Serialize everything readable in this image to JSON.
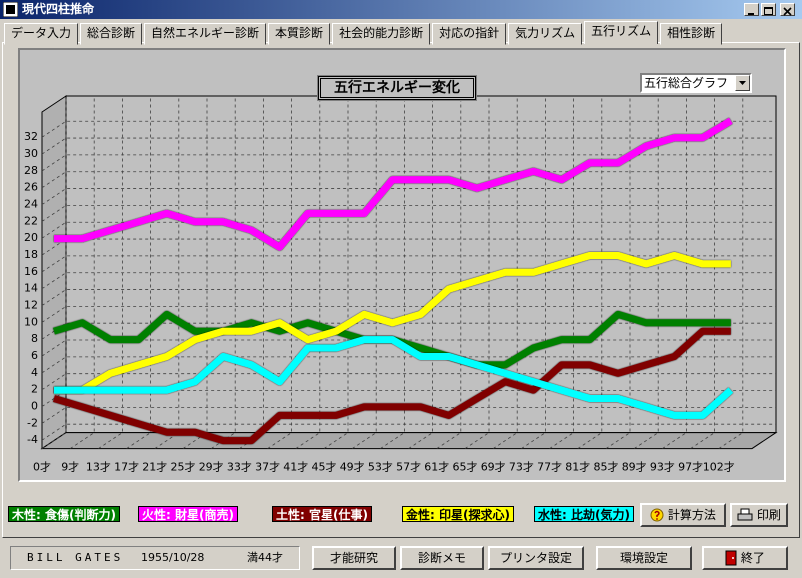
{
  "window": {
    "title": "現代四柱推命"
  },
  "tabs": [
    "データ入力",
    "総合診断",
    "自然エネルギー診断",
    "本質診断",
    "社会的能力診断",
    "対応の指針",
    "気力リズム",
    "五行リズム",
    "相性診断"
  ],
  "dropdown": "五行総合グラフ",
  "chart_data": {
    "type": "line",
    "title": "五行エネルギー変化",
    "categories": [
      "0才",
      "9才",
      "13才",
      "17才",
      "21才",
      "25才",
      "29才",
      "33才",
      "37才",
      "41才",
      "45才",
      "49才",
      "53才",
      "57才",
      "61才",
      "65才",
      "69才",
      "73才",
      "77才",
      "81才",
      "85才",
      "89才",
      "93才",
      "97才",
      "102才"
    ],
    "series": [
      {
        "name": "木性: 食傷(判断力)",
        "color": "#008000",
        "values": [
          8,
          9,
          7,
          7,
          10,
          8,
          8,
          9,
          8,
          9,
          8,
          7,
          7,
          6,
          5,
          4,
          4,
          6,
          7,
          7,
          10,
          9,
          9,
          9,
          9
        ]
      },
      {
        "name": "火性: 財星(商売)",
        "color": "#ff00ff",
        "values": [
          19,
          19,
          20,
          21,
          22,
          21,
          21,
          20,
          18,
          22,
          22,
          22,
          26,
          26,
          26,
          25,
          26,
          27,
          26,
          28,
          28,
          30,
          31,
          31,
          33
        ]
      },
      {
        "name": "土性: 官星(仕事)",
        "color": "#800000",
        "values": [
          0,
          -1,
          -2,
          -3,
          -4,
          -4,
          -5,
          -5,
          -2,
          -2,
          -2,
          -1,
          -1,
          -1,
          -2,
          0,
          2,
          1,
          4,
          4,
          3,
          4,
          5,
          8,
          8
        ]
      },
      {
        "name": "金性: 印星(探求心)",
        "color": "#ffff00",
        "values": [
          1,
          1,
          3,
          4,
          5,
          7,
          8,
          8,
          9,
          7,
          8,
          10,
          9,
          10,
          13,
          14,
          15,
          15,
          16,
          17,
          17,
          16,
          17,
          16,
          16
        ]
      },
      {
        "name": "水性: 比劫(気力)",
        "color": "#00ffff",
        "values": [
          1,
          1,
          1,
          1,
          1,
          2,
          5,
          4,
          2,
          6,
          6,
          7,
          7,
          5,
          5,
          4,
          3,
          2,
          1,
          0,
          0,
          -1,
          -2,
          -2,
          1
        ]
      }
    ],
    "ylim": [
      -5,
      35
    ],
    "yticks": [
      -4,
      -2,
      0,
      2,
      4,
      6,
      8,
      10,
      12,
      14,
      16,
      18,
      20,
      22,
      24,
      26,
      28,
      30,
      32
    ],
    "grid": true
  },
  "buttons": {
    "calc": "計算方法",
    "print": "印刷"
  },
  "status": {
    "name": "BILL GATES",
    "birth": "1955/10/28",
    "age": "満44才"
  },
  "footer_buttons": [
    "才能研究",
    "診断メモ",
    "プリンタ設定",
    "環境設定",
    "終了"
  ]
}
